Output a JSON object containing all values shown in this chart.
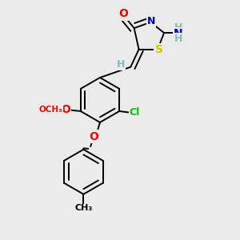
{
  "background_color": "#ebebeb",
  "atom_colors": {
    "O": "#ff0000",
    "N": "#0000cd",
    "S": "#cccc00",
    "Cl": "#00cc00",
    "C": "#000000",
    "H": "#7fbfbf"
  },
  "bond_color": "#000000",
  "bond_width": 1.4,
  "dbo": 0.055,
  "figsize": [
    3.0,
    3.0
  ],
  "dpi": 100
}
